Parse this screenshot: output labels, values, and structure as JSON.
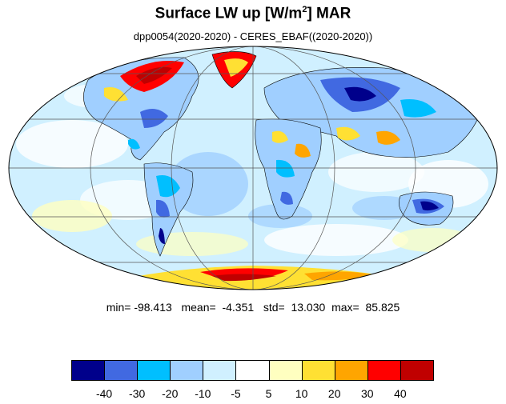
{
  "title": {
    "main": "Surface LW up [W/m",
    "superscript": "2",
    "suffix": "]  MAR"
  },
  "subtitle": "dpp0054(2020-2020) - CERES_EBAF((2020-2020))",
  "stats": {
    "min_label": "min=",
    "min": "-98.413",
    "mean_label": "mean=",
    "mean": "-4.351",
    "std_label": "std=",
    "std": "13.030",
    "max_label": "max=",
    "max": "85.825"
  },
  "colorbar": {
    "colors": [
      "#00008b",
      "#4169e1",
      "#00bfff",
      "#a0cfff",
      "#d0f0ff",
      "#ffffff",
      "#ffffc0",
      "#ffe033",
      "#ffa500",
      "#ff0000",
      "#c00000"
    ],
    "labels": [
      "-40",
      "-30",
      "-20",
      "-10",
      "-5",
      "5",
      "10",
      "20",
      "30",
      "40"
    ]
  },
  "map": {
    "projection": "mollweide",
    "ocean_color": "#d0f0ff",
    "land_outline_color": "#000000"
  }
}
